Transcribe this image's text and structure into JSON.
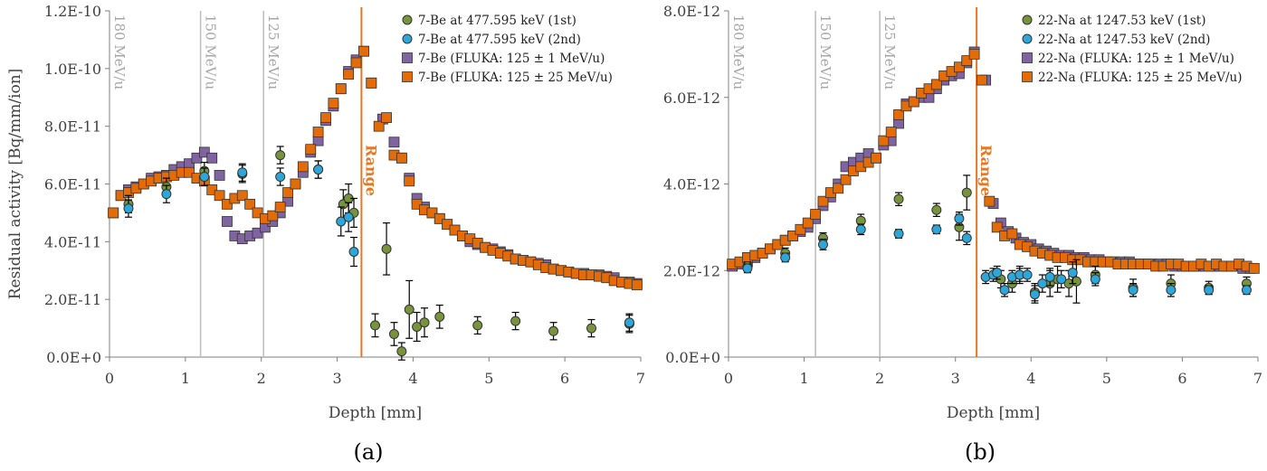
{
  "chart_data": [
    {
      "type": "scatter",
      "panel_label": "(a)",
      "xlabel": "Depth [mm]",
      "ylabel": "Residual activity [Bq/mm/ion]",
      "xlim": [
        0,
        7
      ],
      "ylim": [
        0,
        1.2e-10
      ],
      "x_ticks": [
        "0",
        "1",
        "2",
        "3",
        "4",
        "5",
        "6",
        "7"
      ],
      "y_ticks": [
        "0.0E+0",
        "2.0E-11",
        "4.0E-11",
        "6.0E-11",
        "8.0E-11",
        "1.0E-10",
        "1.2E-10"
      ],
      "reference_lines": [
        {
          "label": "180 MeV/u",
          "x": 0.0
        },
        {
          "label": "150 MeV/u",
          "x": 1.2
        },
        {
          "label": "125 MeV/u",
          "x": 2.03
        }
      ],
      "range_line": {
        "label": "Range",
        "x": 3.32
      },
      "legend_position": "top-right",
      "series": [
        {
          "name": "7-Be at 477.595 keV (1st)",
          "marker": "circle",
          "color": "#77933c",
          "x": [
            0.25,
            0.75,
            1.25,
            1.75,
            2.25,
            2.75,
            3.08,
            3.15,
            3.22,
            3.5,
            3.65,
            3.75,
            3.85,
            3.95,
            4.05,
            4.15,
            4.35,
            4.85,
            5.35,
            5.85,
            6.35,
            6.85
          ],
          "y": [
            5.3e-11,
            5.9e-11,
            6.45e-11,
            6.35e-11,
            7e-11,
            6.5e-11,
            5.3e-11,
            5.5e-11,
            5e-11,
            1.1e-11,
            3.75e-11,
            8e-12,
            2e-12,
            1.65e-11,
            1.05e-11,
            1.2e-11,
            1.4e-11,
            1.1e-11,
            1.25e-11,
            9e-12,
            1e-11,
            1.15e-11
          ],
          "err": [
            3e-12,
            3e-12,
            3e-12,
            3e-12,
            3e-12,
            3e-12,
            5e-12,
            5e-12,
            5e-12,
            4e-12,
            9e-12,
            4e-12,
            3e-12,
            1e-11,
            5e-12,
            5e-12,
            4e-12,
            3e-12,
            3e-12,
            3e-12,
            3e-12,
            3e-12
          ]
        },
        {
          "name": "7-Be at 477.595 keV (2nd)",
          "marker": "circle",
          "color": "#2da7d9",
          "x": [
            0.25,
            0.75,
            1.25,
            1.75,
            2.25,
            2.75,
            3.05,
            3.15,
            3.22,
            6.85
          ],
          "y": [
            5.15e-11,
            5.65e-11,
            6.25e-11,
            6.4e-11,
            6.25e-11,
            6.5e-11,
            4.7e-11,
            4.85e-11,
            3.65e-11,
            1.2e-11
          ],
          "err": [
            3e-12,
            3e-12,
            3e-12,
            3e-12,
            3e-12,
            3e-12,
            5e-12,
            5e-12,
            5e-12,
            3e-12
          ]
        },
        {
          "name": "7-Be (FLUKA: 125 ± 1 MeV/u)",
          "marker": "square",
          "color": "#8064a2",
          "x": [
            0.05,
            0.15,
            0.25,
            0.35,
            0.45,
            0.55,
            0.65,
            0.75,
            0.85,
            0.95,
            1.05,
            1.15,
            1.25,
            1.35,
            1.45,
            1.55,
            1.65,
            1.75,
            1.85,
            1.95,
            2.05,
            2.15,
            2.25,
            2.35,
            2.45,
            2.55,
            2.65,
            2.75,
            2.85,
            2.95,
            3.05,
            3.15,
            3.25,
            3.35,
            3.45,
            3.6,
            3.75,
            3.85,
            3.95,
            4.05,
            4.15,
            4.25,
            4.35,
            4.45,
            4.55,
            4.65,
            4.75,
            4.85,
            4.95,
            5.05,
            5.15,
            5.25,
            5.35,
            5.45,
            5.55,
            5.65,
            5.75,
            5.85,
            5.95,
            6.05,
            6.15,
            6.25,
            6.35,
            6.45,
            6.55,
            6.65,
            6.75,
            6.85,
            6.95
          ],
          "y": [
            5e-11,
            5.6e-11,
            5.8e-11,
            5.9e-11,
            6e-11,
            6.2e-11,
            6.25e-11,
            6.3e-11,
            6.5e-11,
            6.6e-11,
            6.7e-11,
            6.9e-11,
            7.1e-11,
            6.9e-11,
            6.3e-11,
            4.7e-11,
            4.2e-11,
            4.1e-11,
            4.2e-11,
            4.3e-11,
            4.5e-11,
            4.7e-11,
            5e-11,
            5.4e-11,
            6e-11,
            6.4e-11,
            7.1e-11,
            7.5e-11,
            8.2e-11,
            8.7e-11,
            9.3e-11,
            9.9e-11,
            1.03e-10,
            1.06e-10,
            9.5e-11,
            8.25e-11,
            7.45e-11,
            6.9e-11,
            6.2e-11,
            5.5e-11,
            5.2e-11,
            5e-11,
            4.8e-11,
            4.6e-11,
            4.4e-11,
            4.2e-11,
            4e-11,
            3.9e-11,
            3.8e-11,
            3.75e-11,
            3.65e-11,
            3.55e-11,
            3.4e-11,
            3.35e-11,
            3.3e-11,
            3.25e-11,
            3.2e-11,
            3.05e-11,
            3e-11,
            2.95e-11,
            2.9e-11,
            2.9e-11,
            2.85e-11,
            2.85e-11,
            2.8e-11,
            2.75e-11,
            2.6e-11,
            2.6e-11,
            2.55e-11
          ]
        },
        {
          "name": "7-Be (FLUKA: 125 ± 25 MeV/u)",
          "marker": "square",
          "color": "#e36c09",
          "x": [
            0.05,
            0.15,
            0.25,
            0.35,
            0.45,
            0.55,
            0.65,
            0.75,
            0.85,
            0.95,
            1.05,
            1.15,
            1.25,
            1.35,
            1.45,
            1.55,
            1.65,
            1.75,
            1.85,
            1.95,
            2.05,
            2.15,
            2.25,
            2.35,
            2.45,
            2.55,
            2.65,
            2.75,
            2.85,
            2.95,
            3.05,
            3.15,
            3.25,
            3.35,
            3.45,
            3.55,
            3.65,
            3.75,
            3.85,
            3.95,
            4.05,
            4.15,
            4.25,
            4.35,
            4.45,
            4.55,
            4.65,
            4.75,
            4.85,
            4.95,
            5.05,
            5.15,
            5.25,
            5.35,
            5.45,
            5.55,
            5.65,
            5.75,
            5.85,
            5.95,
            6.05,
            6.15,
            6.25,
            6.35,
            6.45,
            6.55,
            6.65,
            6.75,
            6.85,
            6.95
          ],
          "y": [
            5e-11,
            5.6e-11,
            5.7e-11,
            5.85e-11,
            6e-11,
            6.1e-11,
            6.2e-11,
            6.25e-11,
            6.3e-11,
            6.4e-11,
            6.4e-11,
            6.2e-11,
            6.1e-11,
            5.8e-11,
            5.6e-11,
            5.3e-11,
            5.5e-11,
            5.6e-11,
            5.3e-11,
            5e-11,
            4.8e-11,
            4.9e-11,
            5.2e-11,
            5.7e-11,
            6e-11,
            6.6e-11,
            7.2e-11,
            7.8e-11,
            8.3e-11,
            8.8e-11,
            9.3e-11,
            9.8e-11,
            1.02e-10,
            1.06e-10,
            9.5e-11,
            8e-11,
            8.3e-11,
            7e-11,
            6.9e-11,
            6.1e-11,
            5.3e-11,
            5.1e-11,
            5e-11,
            4.8e-11,
            4.6e-11,
            4.4e-11,
            4.2e-11,
            4.1e-11,
            3.95e-11,
            3.8e-11,
            3.7e-11,
            3.6e-11,
            3.5e-11,
            3.4e-11,
            3.35e-11,
            3.3e-11,
            3.2e-11,
            3.1e-11,
            3.05e-11,
            3e-11,
            2.95e-11,
            2.9e-11,
            2.85e-11,
            2.85e-11,
            2.8e-11,
            2.75e-11,
            2.65e-11,
            2.6e-11,
            2.55e-11,
            2.5e-11
          ]
        }
      ]
    },
    {
      "type": "scatter",
      "panel_label": "(b)",
      "xlabel": "Depth [mm]",
      "ylabel": "",
      "xlim": [
        0,
        7
      ],
      "ylim": [
        0,
        8e-12
      ],
      "x_ticks": [
        "0",
        "1",
        "2",
        "3",
        "4",
        "5",
        "6",
        "7"
      ],
      "y_ticks": [
        "0.0E+0",
        "2.0E-12",
        "4.0E-12",
        "6.0E-12",
        "8.0E-12"
      ],
      "reference_lines": [
        {
          "label": "180 MeV/u",
          "x": 0.0
        },
        {
          "label": "150 MeV/u",
          "x": 1.15
        },
        {
          "label": "125 MeV/u",
          "x": 2.0
        }
      ],
      "range_line": {
        "label": "Range",
        "x": 3.28
      },
      "legend_position": "top-right",
      "series": [
        {
          "name": "22-Na at 1247.53 keV (1st)",
          "marker": "circle",
          "color": "#77933c",
          "x": [
            0.25,
            0.75,
            1.25,
            1.75,
            2.25,
            2.75,
            3.05,
            3.15,
            3.6,
            3.75,
            3.85,
            4.05,
            4.25,
            4.35,
            4.5,
            4.6,
            4.85,
            5.35,
            5.85,
            6.35,
            6.85
          ],
          "y": [
            2.1e-12,
            2.4e-12,
            2.75e-12,
            3.15e-12,
            3.65e-12,
            3.4e-12,
            3e-12,
            3.8e-12,
            1.8e-12,
            1.7e-12,
            1.9e-12,
            1.5e-12,
            1.7e-12,
            1.8e-12,
            1.7e-12,
            1.75e-12,
            1.9e-12,
            1.6e-12,
            1.7e-12,
            1.6e-12,
            1.7e-12
          ],
          "err": [
            1e-13,
            1.2e-13,
            1.2e-13,
            1.5e-13,
            1.5e-13,
            1.5e-13,
            3e-13,
            4e-13,
            2e-13,
            2e-13,
            2e-13,
            2e-13,
            3e-13,
            3e-13,
            3e-13,
            5e-13,
            2e-13,
            2e-13,
            2e-13,
            1.5e-13,
            1.5e-13
          ]
        },
        {
          "name": "22-Na at 1247.53 keV (2nd)",
          "marker": "circle",
          "color": "#2da7d9",
          "x": [
            0.25,
            0.75,
            1.25,
            1.75,
            2.25,
            2.75,
            3.05,
            3.15,
            3.4,
            3.5,
            3.55,
            3.65,
            3.75,
            3.85,
            3.95,
            4.05,
            4.15,
            4.25,
            4.4,
            4.55,
            4.85,
            5.35,
            5.85,
            6.35,
            6.85
          ],
          "y": [
            2.05e-12,
            2.3e-12,
            2.6e-12,
            2.95e-12,
            2.85e-12,
            2.95e-12,
            3.2e-12,
            2.75e-12,
            1.85e-12,
            1.9e-12,
            1.95e-12,
            1.55e-12,
            1.85e-12,
            1.9e-12,
            1.9e-12,
            1.45e-12,
            1.7e-12,
            1.85e-12,
            1.8e-12,
            1.95e-12,
            1.8e-12,
            1.55e-12,
            1.55e-12,
            1.55e-12,
            1.55e-12
          ],
          "err": [
            1e-13,
            1e-13,
            1.2e-13,
            1.2e-13,
            1e-13,
            1e-13,
            1.5e-13,
            1.5e-13,
            1.5e-13,
            1.5e-13,
            1.5e-13,
            1.5e-13,
            1.5e-13,
            1.5e-13,
            1.5e-13,
            2e-13,
            2e-13,
            2e-13,
            2e-13,
            2.5e-13,
            1.5e-13,
            1.5e-13,
            1.5e-13,
            1e-13,
            1e-13
          ]
        },
        {
          "name": "22-Na (FLUKA: 125 ± 1 MeV/u)",
          "marker": "square",
          "color": "#8064a2",
          "x": [
            0.05,
            0.15,
            0.25,
            0.35,
            0.45,
            0.55,
            0.65,
            0.75,
            0.85,
            0.95,
            1.05,
            1.15,
            1.25,
            1.35,
            1.45,
            1.55,
            1.65,
            1.75,
            1.85,
            1.95,
            2.05,
            2.15,
            2.25,
            2.35,
            2.45,
            2.55,
            2.65,
            2.75,
            2.85,
            2.95,
            3.05,
            3.15,
            3.25,
            3.4,
            3.5,
            3.6,
            3.7,
            3.8,
            3.9,
            4.0,
            4.1,
            4.2,
            4.3,
            4.4,
            4.5,
            4.6,
            4.7,
            4.8,
            4.9,
            5.0,
            5.1,
            5.2,
            5.3,
            5.4,
            5.5,
            5.6,
            5.7,
            5.8,
            5.9,
            6.0,
            6.1,
            6.2,
            6.3,
            6.4,
            6.5,
            6.6,
            6.7,
            6.8,
            6.9
          ],
          "y": [
            2.1e-12,
            2.15e-12,
            2.2e-12,
            2.3e-12,
            2.4e-12,
            2.5e-12,
            2.6e-12,
            2.7e-12,
            2.8e-12,
            2.9e-12,
            3e-12,
            3.2e-12,
            3.5e-12,
            3.7e-12,
            4e-12,
            4.4e-12,
            4.5e-12,
            4.6e-12,
            4.7e-12,
            4.6e-12,
            4.9e-12,
            5e-12,
            5.4e-12,
            5.85e-12,
            5.9e-12,
            6e-12,
            6e-12,
            6.2e-12,
            6.4e-12,
            6.5e-12,
            6.55e-12,
            6.8e-12,
            7.05e-12,
            6.4e-12,
            3.55e-12,
            3.1e-12,
            2.9e-12,
            2.75e-12,
            2.65e-12,
            2.6e-12,
            2.5e-12,
            2.45e-12,
            2.4e-12,
            2.35e-12,
            2.35e-12,
            2.3e-12,
            2.3e-12,
            2.25e-12,
            2.25e-12,
            2.2e-12,
            2.2e-12,
            2.2e-12,
            2.2e-12,
            2.15e-12,
            2.15e-12,
            2.15e-12,
            2.15e-12,
            2.15e-12,
            2.1e-12,
            2.1e-12,
            2.1e-12,
            2.1e-12,
            2.1e-12,
            2.1e-12,
            2.1e-12,
            2.1e-12,
            2.1e-12,
            2.05e-12,
            2.05e-12
          ]
        },
        {
          "name": "22-Na (FLUKA: 125 ± 25 MeV/u)",
          "marker": "square",
          "color": "#e36c09",
          "x": [
            0.05,
            0.15,
            0.25,
            0.35,
            0.45,
            0.55,
            0.65,
            0.75,
            0.85,
            0.95,
            1.05,
            1.15,
            1.25,
            1.35,
            1.45,
            1.55,
            1.65,
            1.75,
            1.85,
            1.95,
            2.05,
            2.15,
            2.25,
            2.35,
            2.45,
            2.55,
            2.65,
            2.75,
            2.85,
            2.95,
            3.05,
            3.15,
            3.25,
            3.35,
            3.45,
            3.55,
            3.65,
            3.75,
            3.85,
            3.95,
            4.05,
            4.15,
            4.25,
            4.35,
            4.45,
            4.55,
            4.65,
            4.75,
            4.85,
            4.95,
            5.05,
            5.15,
            5.25,
            5.35,
            5.45,
            5.55,
            5.65,
            5.75,
            5.85,
            5.95,
            6.05,
            6.15,
            6.25,
            6.35,
            6.45,
            6.55,
            6.65,
            6.75,
            6.85,
            6.95
          ],
          "y": [
            2.15e-12,
            2.2e-12,
            2.3e-12,
            2.35e-12,
            2.4e-12,
            2.5e-12,
            2.6e-12,
            2.7e-12,
            2.8e-12,
            2.95e-12,
            3.1e-12,
            3.3e-12,
            3.6e-12,
            3.8e-12,
            3.9e-12,
            4.1e-12,
            4.3e-12,
            4.4e-12,
            4.5e-12,
            4.6e-12,
            5e-12,
            5.2e-12,
            5.6e-12,
            5.8e-12,
            5.9e-12,
            6.1e-12,
            6.2e-12,
            6.3e-12,
            6.5e-12,
            6.6e-12,
            6.7e-12,
            6.85e-12,
            7e-12,
            6.4e-12,
            3.6e-12,
            3e-12,
            2.8e-12,
            2.85e-12,
            2.6e-12,
            2.55e-12,
            2.45e-12,
            2.4e-12,
            2.35e-12,
            2.3e-12,
            2.3e-12,
            2.25e-12,
            2.25e-12,
            2.2e-12,
            2.2e-12,
            2.2e-12,
            2.2e-12,
            2.15e-12,
            2.15e-12,
            2.15e-12,
            2.15e-12,
            2.15e-12,
            2.1e-12,
            2.1e-12,
            2.15e-12,
            2.15e-12,
            2.1e-12,
            2.1e-12,
            2.15e-12,
            2.1e-12,
            2.15e-12,
            2.1e-12,
            2.1e-12,
            2.15e-12,
            2.1e-12,
            2.05e-12
          ]
        }
      ]
    }
  ]
}
